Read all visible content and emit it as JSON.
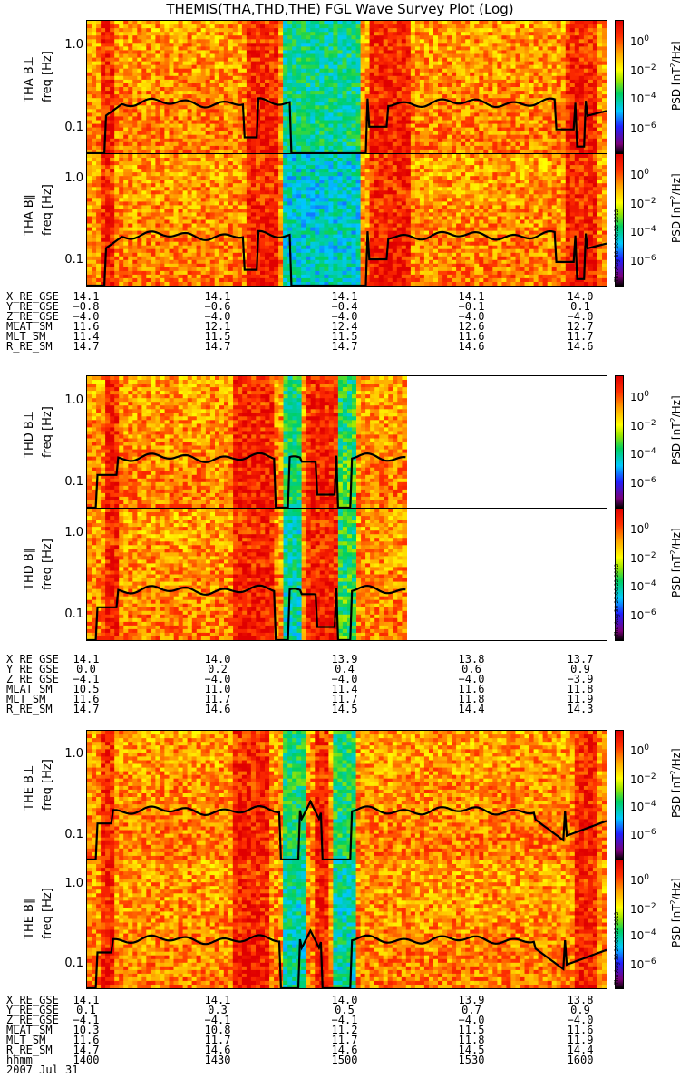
{
  "title": "THEMIS(THA,THD,THE) FGL Wave Survey Plot (Log)",
  "chart_data": {
    "type": "heatmap",
    "x_axis": {
      "label": "hhmm",
      "ticks": [
        "1400",
        "1430",
        "1500",
        "1530",
        "1600"
      ],
      "date": "2007 Jul 31"
    },
    "y_scale": "log",
    "y_ticks": [
      "1.0",
      "0.1"
    ],
    "colorbar": {
      "label": "PSD [nT²/Hz]",
      "ticks": [
        "10⁰",
        "10⁻²",
        "10⁻⁴",
        "10⁻⁶"
      ]
    },
    "stamp": "Thu Aug 30 20:00:22 2012",
    "panels": [
      {
        "id": "tha-perp",
        "ylabel": "THA B⊥ freq [Hz]",
        "probe": "THA",
        "cbar": "PSD [nT2/Hz]"
      },
      {
        "id": "tha-par",
        "ylabel": "THA B∥ freq [Hz]",
        "probe": "THA",
        "cbar": "PSD [nT2/Hz]"
      },
      {
        "id": "thd-perp",
        "ylabel": "THD B⊥ freq [Hz]",
        "probe": "THD",
        "cbar": "PSD [nT2/Hz]"
      },
      {
        "id": "thd-par",
        "ylabel": "THD B∥ freq [Hz]",
        "probe": "THD",
        "cbar": "PSD [nT2/Hz]"
      },
      {
        "id": "the-perp",
        "ylabel": "THE B⊥ freq [Hz]",
        "probe": "THE",
        "cbar": "PSD [nT2/Hz]"
      },
      {
        "id": "the-par",
        "ylabel": "THE B∥ freq [Hz]",
        "probe": "THE",
        "cbar": "PSD [nT2/Hz]"
      }
    ],
    "probe_labels": {
      "THA": {
        "perp": "THA B⊥",
        "par": "THA B∥"
      },
      "THD": {
        "perp": "THD B⊥",
        "par": "THD B∥"
      },
      "THE": {
        "perp": "THE B⊥",
        "par": "THE B∥"
      }
    },
    "freq_label": "freq [Hz]",
    "ephemeris": {
      "labels": [
        "X_RE_GSE",
        "Y_RE_GSE",
        "Z_RE_GSE",
        "MLAT_SM",
        "MLT_SM",
        "R_RE_SM"
      ],
      "THA": [
        [
          "14.1",
          "14.1",
          "14.1",
          "14.1",
          "14.0"
        ],
        [
          "-0.8",
          "-0.6",
          "-0.4",
          "-0.1",
          "0.1"
        ],
        [
          "-4.0",
          "-4.0",
          "-4.0",
          "-4.0",
          "-4.0"
        ],
        [
          "11.6",
          "12.1",
          "12.4",
          "12.6",
          "12.7"
        ],
        [
          "11.4",
          "11.5",
          "11.5",
          "11.6",
          "11.7"
        ],
        [
          "14.7",
          "14.7",
          "14.7",
          "14.6",
          "14.6"
        ]
      ],
      "THD": [
        [
          "14.1",
          "14.0",
          "13.9",
          "13.8",
          "13.7"
        ],
        [
          "0.0",
          "0.2",
          "0.4",
          "0.6",
          "0.9"
        ],
        [
          "-4.1",
          "-4.0",
          "-4.0",
          "-4.0",
          "-3.9"
        ],
        [
          "10.5",
          "11.0",
          "11.4",
          "11.6",
          "11.8"
        ],
        [
          "11.6",
          "11.7",
          "11.7",
          "11.8",
          "11.9"
        ],
        [
          "14.7",
          "14.6",
          "14.5",
          "14.4",
          "14.3"
        ]
      ],
      "THE": [
        [
          "14.1",
          "14.1",
          "14.0",
          "13.9",
          "13.8"
        ],
        [
          "0.1",
          "0.3",
          "0.5",
          "0.7",
          "0.9"
        ],
        [
          "-4.1",
          "-4.1",
          "-4.1",
          "-4.0",
          "-4.0"
        ],
        [
          "10.3",
          "10.8",
          "11.2",
          "11.5",
          "11.6"
        ],
        [
          "11.6",
          "11.7",
          "11.7",
          "11.8",
          "11.9"
        ],
        [
          "14.7",
          "14.6",
          "14.6",
          "14.5",
          "14.4"
        ]
      ]
    }
  }
}
